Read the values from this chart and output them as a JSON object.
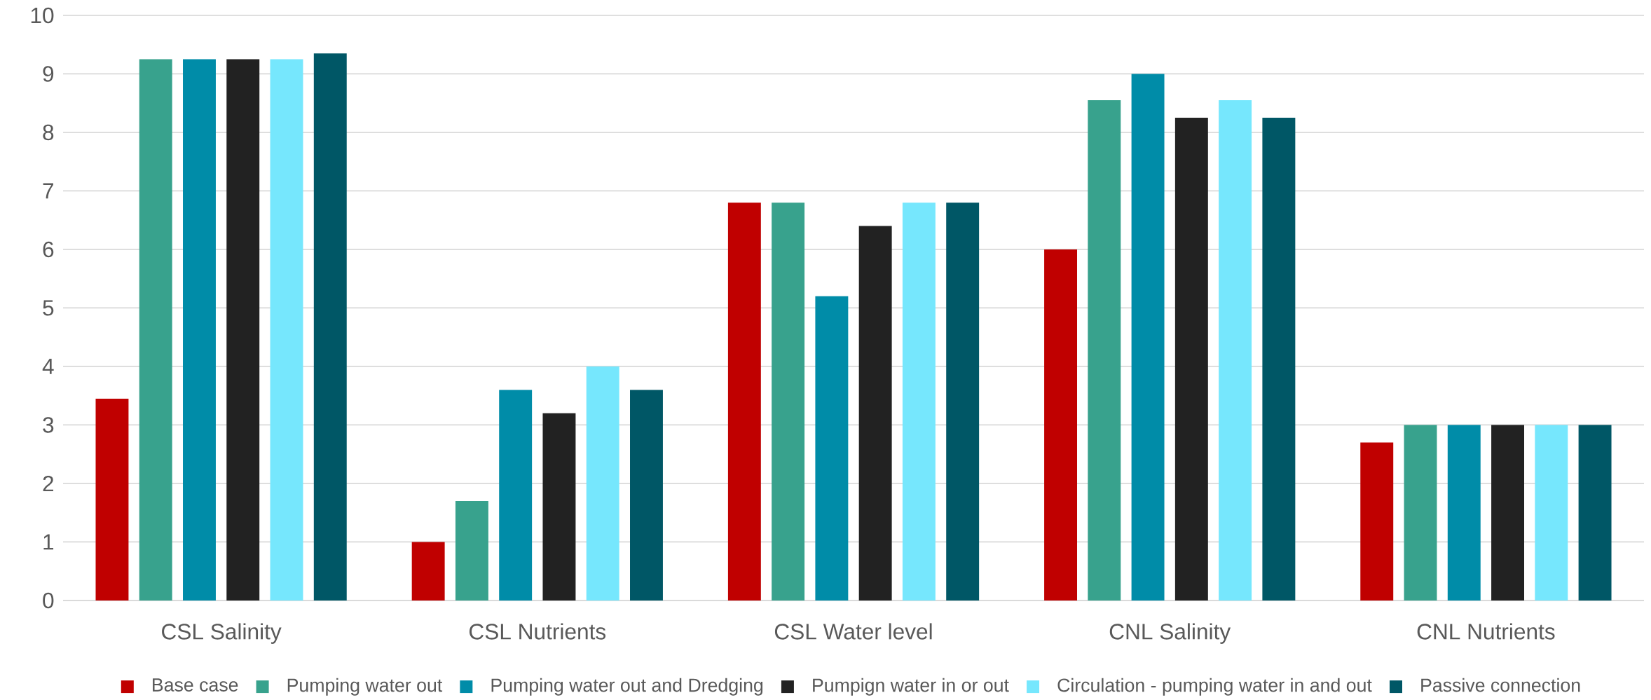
{
  "chart_data": {
    "type": "bar",
    "categories": [
      "CSL Salinity",
      "CSL Nutrients",
      "CSL Water level",
      "CNL Salinity",
      "CNL Nutrients"
    ],
    "series": [
      {
        "name": "Base case",
        "color": "#c00000",
        "values": [
          3.45,
          1,
          6.8,
          6,
          2.7
        ]
      },
      {
        "name": "Pumping water out",
        "color": "#38a28d",
        "values": [
          9.25,
          1.7,
          6.8,
          8.55,
          3
        ]
      },
      {
        "name": "Pumping water out and Dredging",
        "color": "#008ca8",
        "values": [
          9.25,
          3.6,
          5.2,
          9,
          3
        ]
      },
      {
        "name": "Pumpign water in or out",
        "color": "#222222",
        "values": [
          9.25,
          3.2,
          6.4,
          8.25,
          3
        ]
      },
      {
        "name": "Circulation - pumping water in and out",
        "color": "#76e7fd",
        "values": [
          9.25,
          4,
          6.8,
          8.55,
          3
        ]
      },
      {
        "name": "Passive connection",
        "color": "#005766",
        "values": [
          9.35,
          3.6,
          6.8,
          8.25,
          3
        ]
      }
    ],
    "ylim": [
      0,
      10
    ],
    "yticks": [
      0,
      1,
      2,
      3,
      4,
      5,
      6,
      7,
      8,
      9,
      10
    ],
    "grid": "y",
    "legend": "bottom"
  }
}
